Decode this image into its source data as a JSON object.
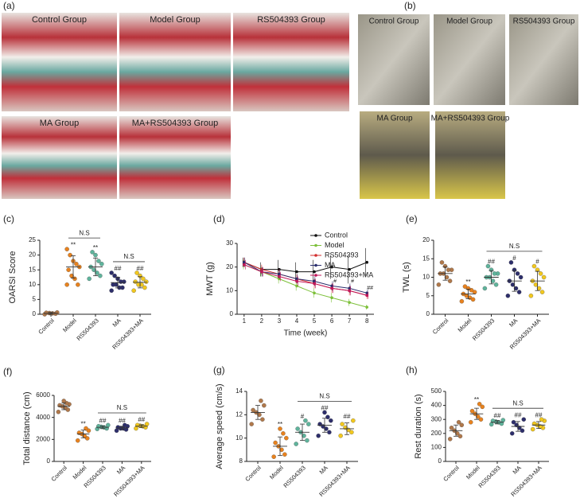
{
  "images": {
    "a": {
      "label": "(a)",
      "groups": [
        "Control Group",
        "Model Group",
        "RS504393 Group",
        "MA Group",
        "MA+RS504393 Group"
      ]
    },
    "b": {
      "label": "(b)",
      "groups": [
        "Control Group",
        "Model Group",
        "RS504393 Group",
        "MA Group",
        "MA+RS504393 Group"
      ]
    }
  },
  "chart_data": [
    {
      "type": "dot",
      "panel": "(c)",
      "ylabel": "OARSI Score",
      "categories": [
        "Control",
        "Model",
        "RS504393",
        "MA",
        "RS504393+MA"
      ],
      "colors": [
        "#b0784a",
        "#e8821e",
        "#5fb49c",
        "#2d2e6b",
        "#f2c81e"
      ],
      "points": [
        [
          0,
          0.2,
          0.3,
          0.4,
          0.5,
          0.6
        ],
        [
          10,
          10,
          12,
          13,
          15,
          16,
          17,
          18,
          20,
          22
        ],
        [
          12,
          13,
          14,
          15,
          16,
          17,
          18,
          20,
          21
        ],
        [
          8,
          9,
          9,
          10,
          10,
          11,
          11,
          12,
          13,
          14
        ],
        [
          8,
          9,
          10,
          10,
          11,
          11,
          12,
          13,
          14
        ]
      ],
      "means": [
        0.3,
        16,
        16,
        10.7,
        10.8
      ],
      "errors": [
        0.3,
        3.8,
        3,
        1.8,
        1.9
      ],
      "ylim": [
        0,
        25
      ],
      "yticks": [
        0,
        5,
        10,
        15,
        20,
        25
      ],
      "annotations": [
        {
          "text": "**",
          "category": 1
        },
        {
          "text": "**",
          "category": 2
        },
        {
          "text": "##",
          "category": 3
        },
        {
          "text": "##",
          "category": 4
        }
      ],
      "brackets": [
        {
          "text": "N.S",
          "from": 1,
          "to": 2
        },
        {
          "text": "N.S",
          "from": 3,
          "to": 4
        }
      ]
    },
    {
      "type": "line",
      "panel": "(d)",
      "xlabel": "Time (week)",
      "ylabel": "MWT (g)",
      "x": [
        1,
        2,
        3,
        4,
        5,
        6,
        7,
        8
      ],
      "xlim": [
        0.6,
        8.4
      ],
      "xticks": [
        1,
        2,
        3,
        4,
        5,
        6,
        7,
        8
      ],
      "ylim": [
        0,
        30
      ],
      "yticks": [
        0,
        10,
        20,
        30
      ],
      "legend": "upper right",
      "series": [
        {
          "name": "Control",
          "color": "#111111",
          "values": [
            22,
            19,
            19,
            18,
            18,
            20,
            19,
            22
          ],
          "errors": [
            2,
            3,
            4,
            4,
            5,
            5,
            6,
            6
          ]
        },
        {
          "name": "Model",
          "color": "#7dc03a",
          "values": [
            21,
            18,
            15,
            12,
            9,
            7,
            5,
            3
          ],
          "errors": [
            2,
            2,
            2,
            2,
            2,
            2,
            1.5,
            1
          ]
        },
        {
          "name": "RS504393",
          "color": "#d32f2f",
          "values": [
            22,
            19,
            17,
            15,
            13,
            11,
            10,
            8
          ],
          "errors": [
            2,
            2,
            2,
            2,
            2,
            2,
            2,
            1.5
          ]
        },
        {
          "name": "MA",
          "color": "#2b2f6e",
          "values": [
            22,
            18,
            17,
            15,
            14,
            12,
            11,
            9
          ],
          "errors": [
            2,
            2,
            2,
            2,
            2,
            2,
            2,
            1.5
          ]
        },
        {
          "name": "RS504393+MA",
          "color": "#c2185b",
          "values": [
            21,
            18,
            16,
            14,
            13,
            11,
            10,
            8
          ],
          "errors": [
            2,
            2,
            2,
            2,
            2,
            2,
            2,
            1.5
          ]
        }
      ],
      "annotations": [
        {
          "text": "#",
          "x": 6,
          "y": 14
        },
        {
          "text": "#",
          "x": 7,
          "y": 14
        },
        {
          "text": "##",
          "x": 8,
          "y": 11
        }
      ]
    },
    {
      "type": "dot",
      "panel": "(e)",
      "ylabel": "TWL (s)",
      "categories": [
        "Control",
        "Model",
        "RS504393",
        "MA",
        "RS504393+MA"
      ],
      "colors": [
        "#b0784a",
        "#e8821e",
        "#5fb49c",
        "#2d2e6b",
        "#f2c81e"
      ],
      "points": [
        [
          8,
          9,
          10,
          11,
          11,
          12,
          12,
          13,
          14
        ],
        [
          3.5,
          4,
          4.5,
          5,
          5.5,
          6,
          6.5,
          7,
          7.5
        ],
        [
          7,
          8,
          9,
          10,
          10,
          11,
          11,
          12,
          13
        ],
        [
          5,
          6,
          7,
          8,
          9,
          10,
          11,
          12,
          14
        ],
        [
          5,
          6,
          7,
          8,
          9,
          10,
          11,
          12,
          13
        ]
      ],
      "means": [
        11,
        5.5,
        10,
        9,
        9
      ],
      "errors": [
        1.8,
        1.3,
        1.8,
        2.8,
        2.6
      ],
      "ylim": [
        0,
        20
      ],
      "yticks": [
        0,
        5,
        10,
        15,
        20
      ],
      "annotations": [
        {
          "text": "**",
          "category": 1
        },
        {
          "text": "##",
          "category": 2
        },
        {
          "text": "#",
          "category": 3
        },
        {
          "text": "#",
          "category": 4
        }
      ],
      "brackets": [
        {
          "text": "N.S",
          "from": 2,
          "to": 4
        }
      ]
    },
    {
      "type": "dot",
      "panel": "(f)",
      "ylabel": "Total distance (cm)",
      "categories": [
        "Control",
        "Model",
        "RS504393",
        "MA",
        "RS504393+MA"
      ],
      "colors": [
        "#b0784a",
        "#e8821e",
        "#5fb49c",
        "#2d2e6b",
        "#f2c81e"
      ],
      "points": [
        [
          4500,
          4700,
          4900,
          5000,
          5100,
          5200,
          5300,
          5500
        ],
        [
          1900,
          2100,
          2300,
          2500,
          2600,
          2800,
          3000
        ],
        [
          2950,
          3000,
          3100,
          3150,
          3200,
          3300
        ],
        [
          2800,
          2900,
          3000,
          3000,
          3100,
          3200,
          3300
        ],
        [
          3000,
          3100,
          3200,
          3250,
          3300,
          3400
        ]
      ],
      "means": [
        5000,
        2500,
        3100,
        3050,
        3200
      ],
      "errors": [
        300,
        350,
        120,
        150,
        130
      ],
      "ylim": [
        0,
        6000
      ],
      "yticks": [
        0,
        2000,
        4000,
        6000
      ],
      "annotations": [
        {
          "text": "**",
          "category": 1
        },
        {
          "text": "##",
          "category": 2
        },
        {
          "text": "##",
          "category": 3
        },
        {
          "text": "##",
          "category": 4
        }
      ],
      "brackets": [
        {
          "text": "N.S",
          "from": 2,
          "to": 4
        }
      ]
    },
    {
      "type": "dot",
      "panel": "(g)",
      "ylabel": "Average speed (cm/s)",
      "categories": [
        "Control",
        "Model",
        "RS504393",
        "MA",
        "RS504393+MA"
      ],
      "colors": [
        "#b0784a",
        "#e8821e",
        "#5fb49c",
        "#2d2e6b",
        "#f2c81e"
      ],
      "points": [
        [
          11.2,
          11.6,
          12,
          12.2,
          12.4,
          12.8,
          13.2
        ],
        [
          8.4,
          8.6,
          9,
          9.3,
          9.6,
          10,
          10.4,
          10.8
        ],
        [
          9.5,
          9.8,
          10.2,
          10.5,
          10.8,
          11.2,
          11.5
        ],
        [
          10.2,
          10.5,
          10.8,
          11,
          11.2,
          11.5,
          11.8,
          12.2
        ],
        [
          10.2,
          10.5,
          10.7,
          10.9,
          11.2,
          11.5
        ]
      ],
      "means": [
        12.2,
        9.3,
        10.5,
        11.1,
        10.8
      ],
      "errors": [
        0.6,
        0.8,
        0.7,
        0.6,
        0.5
      ],
      "ylim": [
        8,
        14
      ],
      "yticks": [
        8,
        10,
        12,
        14
      ],
      "annotations": [
        {
          "text": "**",
          "category": 1
        },
        {
          "text": "#",
          "category": 2
        },
        {
          "text": "##",
          "category": 3
        },
        {
          "text": "##",
          "category": 4
        }
      ],
      "brackets": [
        {
          "text": "N.S",
          "from": 2,
          "to": 4
        }
      ]
    },
    {
      "type": "dot",
      "panel": "(h)",
      "ylabel": "Rest duration (s)",
      "categories": [
        "Control",
        "Model",
        "RS504393",
        "MA",
        "RS504393+MA"
      ],
      "colors": [
        "#b0784a",
        "#e8821e",
        "#5fb49c",
        "#2d2e6b",
        "#f2c81e"
      ],
      "points": [
        [
          160,
          180,
          200,
          220,
          240,
          260,
          280
        ],
        [
          280,
          300,
          320,
          340,
          360,
          390,
          410
        ],
        [
          265,
          270,
          280,
          285,
          290,
          295
        ],
        [
          200,
          220,
          240,
          260,
          280,
          300
        ],
        [
          230,
          240,
          250,
          260,
          270,
          290,
          300
        ]
      ],
      "means": [
        220,
        340,
        280,
        250,
        260
      ],
      "errors": [
        40,
        40,
        12,
        35,
        25
      ],
      "ylim": [
        0,
        500
      ],
      "yticks": [
        0,
        100,
        200,
        300,
        400,
        500
      ],
      "annotations": [
        {
          "text": "**",
          "category": 1
        },
        {
          "text": "##",
          "category": 2
        },
        {
          "text": "##",
          "category": 3
        },
        {
          "text": "##",
          "category": 4
        }
      ],
      "brackets": [
        {
          "text": "N.S",
          "from": 2,
          "to": 4
        }
      ]
    }
  ]
}
